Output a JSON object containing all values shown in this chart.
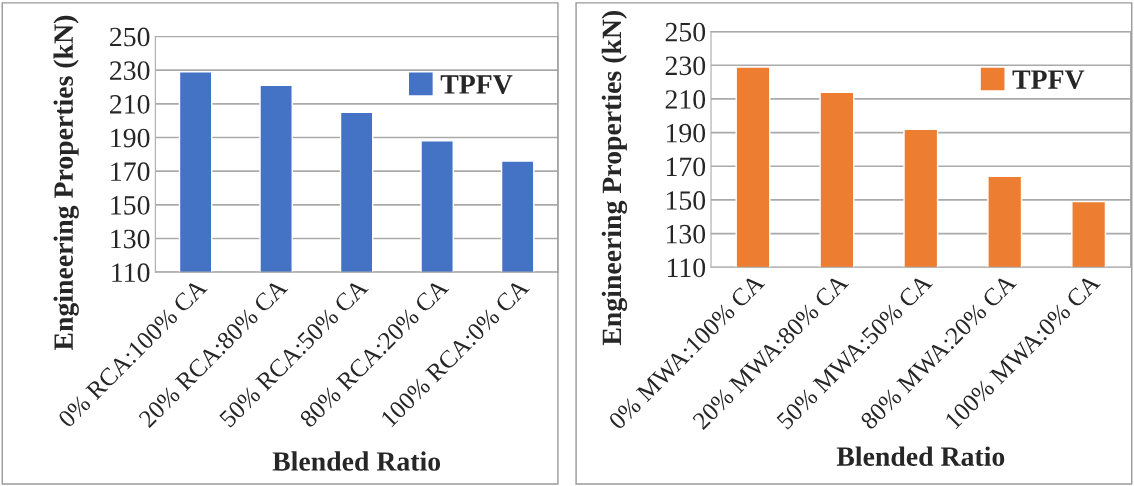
{
  "chart_data": [
    {
      "type": "bar",
      "xlabel": "Blended Ratio",
      "ylabel": "Engineering Properties (kN)",
      "categories": [
        "0% RCA:100% CA",
        "20% RCA:80% CA",
        "50% RCA:50% CA",
        "80% RCA:20% CA",
        "100% RCA:0% CA"
      ],
      "series": [
        {
          "name": "TPFV",
          "color": "#4472c4",
          "values": [
            229,
            221,
            205,
            188,
            176
          ]
        }
      ],
      "ylim": [
        110,
        250
      ],
      "yticks": [
        110,
        130,
        150,
        170,
        190,
        210,
        230,
        250
      ],
      "grid": "y",
      "legend": "top right"
    },
    {
      "type": "bar",
      "xlabel": "Blended Ratio",
      "ylabel": "Engineering Properties (kN)",
      "categories": [
        "0% MWA:100% CA",
        "20% MWA:80% CA",
        "50% MWA:50% CA",
        "80% MWA:20% CA",
        "100% MWA:0% CA"
      ],
      "series": [
        {
          "name": "TPFV",
          "color": "#ed7d31",
          "values": [
            229,
            214,
            192,
            164,
            149
          ]
        }
      ],
      "ylim": [
        110,
        250
      ],
      "yticks": [
        110,
        130,
        150,
        170,
        190,
        210,
        230,
        250
      ],
      "grid": "y",
      "legend": "top right"
    }
  ]
}
